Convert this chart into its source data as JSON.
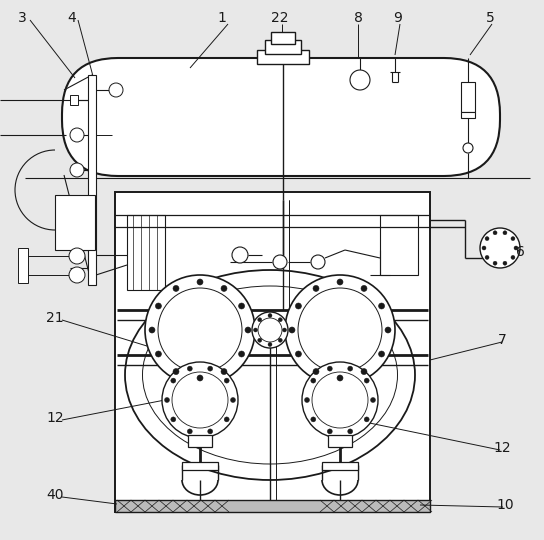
{
  "bg": "#e8e8e8",
  "lc": "#1a1a1a",
  "white": "#ffffff",
  "gray": "#cccccc",
  "labels": [
    "3",
    "4",
    "1",
    "22",
    "8",
    "9",
    "5",
    "6",
    "7",
    "21",
    "12",
    "12",
    "40",
    "10"
  ]
}
